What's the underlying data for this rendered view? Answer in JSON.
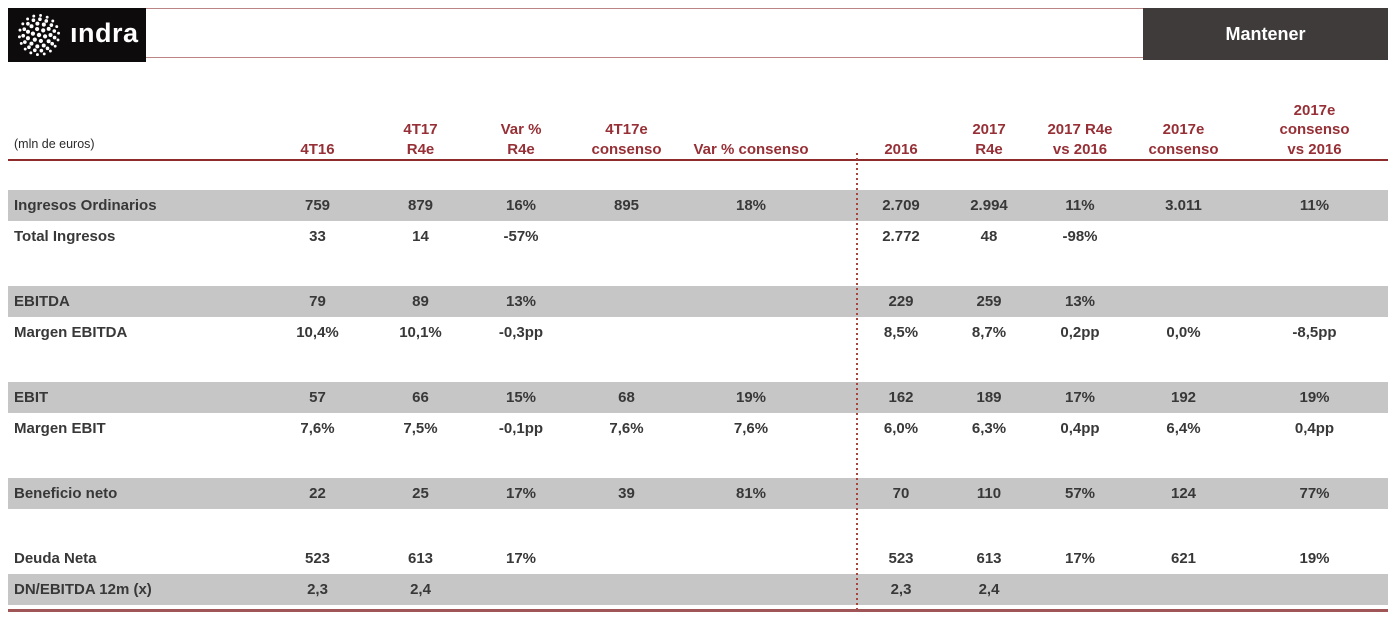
{
  "brand": {
    "logo_text": "ındra"
  },
  "rating_badge": {
    "label": "Mantener"
  },
  "table": {
    "unit_label": "(mln de euros)",
    "columns": [
      {
        "key": "4t16",
        "label": "4T16"
      },
      {
        "key": "4t17-r4e",
        "label": "4T17\nR4e"
      },
      {
        "key": "var-pct-r4e",
        "label": "Var %\nR4e"
      },
      {
        "key": "4t17e-consenso",
        "label": "4T17e\nconsenso"
      },
      {
        "key": "var-pct-consenso",
        "label": "Var % consenso"
      },
      {
        "key": "2016",
        "label": "2016"
      },
      {
        "key": "2017-r4e",
        "label": "2017\nR4e"
      },
      {
        "key": "2017-r4e-vs-2016",
        "label": "2017 R4e\nvs 2016"
      },
      {
        "key": "2017e-consenso",
        "label": "2017e\nconsenso"
      },
      {
        "key": "2017e-consenso-vs-2016",
        "label": "2017e\nconsenso\nvs 2016"
      }
    ],
    "rows": [
      {
        "key": "ingresos-ordinarios",
        "label": "Ingresos Ordinarios",
        "shaded": true,
        "values": [
          "759",
          "879",
          "16%",
          "895",
          "18%",
          "2.709",
          "2.994",
          "11%",
          "3.011",
          "11%"
        ]
      },
      {
        "key": "total-ingresos",
        "label": "Total Ingresos",
        "shaded": false,
        "values": [
          "33",
          "14",
          "-57%",
          "",
          "",
          "2.772",
          "48",
          "-98%",
          "",
          ""
        ]
      },
      {
        "key": "spacer-1",
        "spacer": true
      },
      {
        "key": "ebitda",
        "label": "EBITDA",
        "shaded": true,
        "values": [
          "79",
          "89",
          "13%",
          "",
          "",
          "229",
          "259",
          "13%",
          "",
          ""
        ]
      },
      {
        "key": "margen-ebitda",
        "label": "Margen EBITDA",
        "shaded": false,
        "values": [
          "10,4%",
          "10,1%",
          "-0,3pp",
          "",
          "",
          "8,5%",
          "8,7%",
          "0,2pp",
          "0,0%",
          "-8,5pp"
        ]
      },
      {
        "key": "spacer-2",
        "spacer": true
      },
      {
        "key": "ebit",
        "label": "EBIT",
        "shaded": true,
        "values": [
          "57",
          "66",
          "15%",
          "68",
          "19%",
          "162",
          "189",
          "17%",
          "192",
          "19%"
        ]
      },
      {
        "key": "margen-ebit",
        "label": "Margen EBIT",
        "shaded": false,
        "values": [
          "7,6%",
          "7,5%",
          "-0,1pp",
          "7,6%",
          "7,6%",
          "6,0%",
          "6,3%",
          "0,4pp",
          "6,4%",
          "0,4pp"
        ]
      },
      {
        "key": "spacer-3",
        "spacer": true
      },
      {
        "key": "beneficio-neto",
        "label": "Beneficio neto",
        "shaded": true,
        "values": [
          "22",
          "25",
          "17%",
          "39",
          "81%",
          "70",
          "110",
          "57%",
          "124",
          "77%"
        ]
      },
      {
        "key": "spacer-4",
        "spacer": true
      },
      {
        "key": "deuda-neta",
        "label": "Deuda Neta",
        "shaded": false,
        "values": [
          "523",
          "613",
          "17%",
          "",
          "",
          "523",
          "613",
          "17%",
          "621",
          "19%"
        ]
      },
      {
        "key": "dn-ebitda-12m",
        "label": "DN/EBITDA 12m (x)",
        "shaded": true,
        "values": [
          "2,3",
          "2,4",
          "",
          "",
          "",
          "2,3",
          "2,4",
          "",
          "",
          ""
        ]
      }
    ]
  },
  "colors": {
    "header_text": "#963036",
    "header_rule": "#8e2b2b",
    "bottom_rule": "#a05656",
    "row_shade": "#c6c6c6",
    "badge_bg": "#3f3b3b",
    "logo_bg": "#0e0b0c",
    "frame_border": "#bb8585",
    "dotted_divider": "#a8453c",
    "body_text": "#383838"
  }
}
